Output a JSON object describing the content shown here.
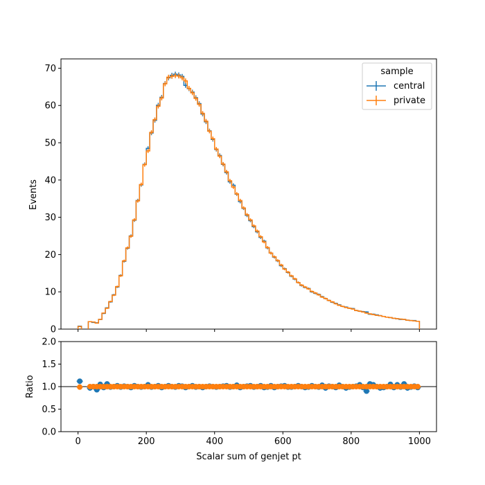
{
  "chart_data": [
    {
      "type": "line",
      "panel": "main",
      "step": true,
      "ylabel": "Events",
      "xlim": [
        -50,
        1050
      ],
      "ylim": [
        0,
        72.5
      ],
      "yticks": [
        0,
        10,
        20,
        30,
        40,
        50,
        60,
        70
      ],
      "ytick_labels": [
        "0",
        "10",
        "20",
        "30",
        "40",
        "50",
        "60",
        "70"
      ],
      "xticks": [
        0,
        200,
        400,
        600,
        800,
        1000
      ],
      "bin_edges": [
        0,
        10,
        20,
        30,
        40,
        50,
        60,
        70,
        80,
        90,
        100,
        110,
        120,
        130,
        140,
        150,
        160,
        170,
        180,
        190,
        200,
        210,
        220,
        230,
        240,
        250,
        260,
        270,
        280,
        290,
        300,
        310,
        320,
        330,
        340,
        350,
        360,
        370,
        380,
        390,
        400,
        410,
        420,
        430,
        440,
        450,
        460,
        470,
        480,
        490,
        500,
        510,
        520,
        530,
        540,
        550,
        560,
        570,
        580,
        590,
        600,
        610,
        620,
        630,
        640,
        650,
        660,
        670,
        680,
        690,
        700,
        710,
        720,
        730,
        740,
        750,
        760,
        770,
        780,
        790,
        800,
        810,
        820,
        830,
        840,
        850,
        860,
        870,
        880,
        890,
        900,
        910,
        920,
        930,
        940,
        950,
        960,
        970,
        980,
        990,
        1000
      ],
      "legend": {
        "title": "sample",
        "position": "top-right"
      },
      "series": [
        {
          "name": "central",
          "color": "#1f77b4",
          "values": [
            0.8,
            0,
            0,
            2.0,
            1.8,
            1.7,
            2.6,
            4.2,
            5.7,
            7.3,
            9.2,
            11.3,
            14.4,
            18.2,
            21.7,
            25.0,
            29.2,
            34.5,
            38.7,
            44.2,
            48.5,
            52.6,
            56.0,
            60.1,
            62.2,
            65.9,
            67.4,
            68.1,
            68.4,
            68.2,
            67.8,
            65.4,
            64.5,
            63.6,
            62.1,
            60.5,
            57.7,
            55.6,
            53.2,
            50.9,
            48.2,
            46.6,
            44.2,
            42.0,
            39.5,
            38.6,
            36.2,
            34.2,
            32.4,
            30.5,
            29.1,
            27.5,
            26.1,
            24.6,
            23.6,
            21.8,
            20.4,
            19.3,
            18.3,
            17.0,
            16.2,
            15.2,
            14.2,
            13.4,
            12.5,
            11.7,
            11.2,
            10.9,
            10.0,
            9.6,
            9.3,
            8.7,
            8.2,
            7.7,
            7.2,
            6.9,
            6.5,
            6.1,
            5.9,
            5.6,
            5.5,
            5.0,
            4.8,
            4.7,
            4.6,
            4.0,
            4.0,
            3.8,
            3.6,
            3.4,
            3.2,
            3.1,
            2.9,
            2.8,
            2.6,
            2.6,
            2.4,
            2.3,
            2.3,
            2.1
          ]
        },
        {
          "name": "private",
          "color": "#ff7f0e",
          "values": [
            0.7,
            0,
            0,
            2.0,
            1.9,
            1.6,
            2.6,
            4.3,
            5.6,
            7.4,
            9.1,
            11.4,
            14.3,
            18.3,
            21.8,
            24.9,
            29.3,
            34.4,
            38.8,
            44.1,
            47.8,
            52.8,
            56.2,
            59.8,
            62.0,
            65.8,
            67.6,
            67.8,
            68.0,
            67.9,
            67.4,
            66.6,
            64.6,
            63.4,
            61.9,
            60.3,
            57.9,
            55.8,
            53.1,
            51.1,
            48.3,
            46.4,
            44.3,
            42.2,
            39.8,
            38.1,
            36.3,
            34.5,
            32.5,
            30.7,
            29.3,
            27.7,
            26.3,
            24.8,
            23.4,
            21.9,
            20.4,
            19.4,
            18.4,
            17.2,
            16.1,
            15.3,
            14.3,
            13.5,
            12.5,
            11.8,
            11.3,
            10.8,
            10.1,
            9.7,
            9.2,
            8.6,
            8.2,
            7.7,
            7.3,
            6.8,
            6.4,
            6.1,
            5.8,
            5.6,
            5.4,
            5.0,
            4.8,
            4.6,
            4.3,
            4.1,
            3.9,
            3.7,
            3.6,
            3.4,
            3.2,
            3.1,
            2.9,
            2.8,
            2.7,
            2.6,
            2.4,
            2.3,
            2.2,
            2.1
          ]
        }
      ]
    },
    {
      "type": "scatter",
      "panel": "ratio",
      "xlabel": "Scalar sum of genjet pt",
      "ylabel": "Ratio",
      "xlim": [
        -50,
        1050
      ],
      "ylim": [
        0,
        2.0
      ],
      "yticks": [
        0,
        0.5,
        1.0,
        1.5,
        2.0
      ],
      "ytick_labels": [
        "0.0",
        "0.5",
        "1.0",
        "1.5",
        "2.0"
      ],
      "xticks": [
        0,
        200,
        400,
        600,
        800,
        1000
      ],
      "xtick_labels": [
        "0",
        "200",
        "400",
        "600",
        "800",
        "1000"
      ],
      "reference_line": 1.0,
      "x": [
        5,
        35,
        45,
        55,
        65,
        75,
        85,
        95,
        105,
        115,
        125,
        135,
        145,
        155,
        165,
        175,
        185,
        195,
        205,
        215,
        225,
        235,
        245,
        255,
        265,
        275,
        285,
        295,
        305,
        315,
        325,
        335,
        345,
        355,
        365,
        375,
        385,
        395,
        405,
        415,
        425,
        435,
        445,
        455,
        465,
        475,
        485,
        495,
        505,
        515,
        525,
        535,
        545,
        555,
        565,
        575,
        585,
        595,
        605,
        615,
        625,
        635,
        645,
        655,
        665,
        675,
        685,
        695,
        705,
        715,
        725,
        735,
        745,
        755,
        765,
        775,
        785,
        795,
        805,
        815,
        825,
        835,
        845,
        855,
        865,
        875,
        885,
        895,
        905,
        915,
        925,
        935,
        945,
        955,
        965,
        975,
        985,
        995
      ],
      "series": [
        {
          "name": "central",
          "color": "#1f77b4",
          "values": [
            1.12,
            0.97,
            1.0,
            0.93,
            1.05,
            0.98,
            1.06,
            0.99,
            1.0,
            1.02,
            0.99,
            1.01,
            1.0,
            0.98,
            1.02,
            1.0,
            0.99,
            1.0,
            1.04,
            0.99,
            1.0,
            1.02,
            0.98,
            1.0,
            1.02,
            1.0,
            0.99,
            1.02,
            1.01,
            0.98,
            1.0,
            1.02,
            0.99,
            1.0,
            0.98,
            1.0,
            1.01,
            1.0,
            0.99,
            1.0,
            1.01,
            1.02,
            0.99,
            1.0,
            1.03,
            0.98,
            1.0,
            1.01,
            1.02,
            0.99,
            1.0,
            1.02,
            0.98,
            0.99,
            1.02,
            0.98,
            1.0,
            1.01,
            1.02,
            0.99,
            0.99,
            1.0,
            1.02,
            1.0,
            0.98,
            0.99,
            1.02,
            1.0,
            0.99,
            1.03,
            0.97,
            1.01,
            1.0,
            0.98,
            1.03,
            1.0,
            0.97,
            0.99,
            1.0,
            1.01,
            1.04,
            0.98,
            0.9,
            1.06,
            1.04,
            1.0,
            0.97,
            0.98,
            1.0,
            1.05,
            0.98,
            1.04,
            0.99,
            1.06,
            0.97,
            0.99,
            1.01,
            0.98
          ]
        },
        {
          "name": "private",
          "color": "#ff7f0e",
          "values": [
            0.99,
            1.0,
            1.0,
            1.0,
            1.0,
            1.0,
            1.0,
            1.0,
            1.0,
            1.0,
            1.0,
            1.0,
            1.0,
            1.0,
            1.0,
            1.0,
            1.0,
            1.0,
            1.0,
            1.0,
            1.0,
            1.0,
            1.0,
            1.0,
            1.0,
            1.0,
            1.0,
            1.0,
            1.0,
            1.0,
            1.0,
            1.0,
            1.0,
            1.0,
            1.0,
            1.0,
            1.0,
            1.0,
            1.0,
            1.0,
            1.0,
            1.0,
            1.0,
            1.0,
            1.0,
            1.0,
            1.0,
            1.0,
            1.0,
            1.0,
            1.0,
            1.0,
            1.0,
            1.0,
            1.0,
            1.0,
            1.0,
            1.0,
            1.0,
            1.0,
            1.0,
            1.0,
            1.0,
            1.0,
            1.0,
            1.0,
            1.0,
            1.0,
            1.0,
            1.0,
            1.0,
            1.0,
            1.0,
            1.0,
            1.0,
            1.0,
            1.0,
            1.0,
            1.0,
            1.0,
            1.0,
            1.0,
            1.0,
            1.0,
            1.0,
            1.0,
            1.0,
            1.0,
            1.0,
            1.0,
            1.0,
            1.0,
            1.0,
            1.0,
            1.0,
            1.0,
            1.0,
            1.0
          ]
        }
      ]
    }
  ]
}
